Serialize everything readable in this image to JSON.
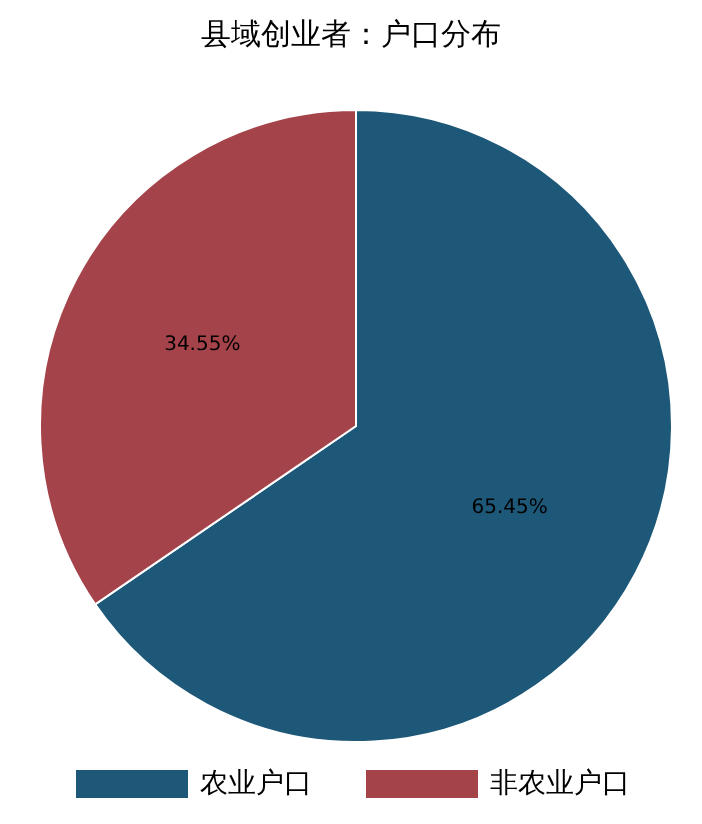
{
  "chart_data": {
    "type": "pie",
    "title": "县域创业者：户口分布",
    "categories": [
      "农业户口",
      "非农业户口"
    ],
    "values": [
      65.45,
      34.55
    ],
    "colors": [
      "#1e5878",
      "#a5434a"
    ],
    "value_labels": [
      "65.45%",
      "34.55%"
    ],
    "legend": "bottom"
  }
}
